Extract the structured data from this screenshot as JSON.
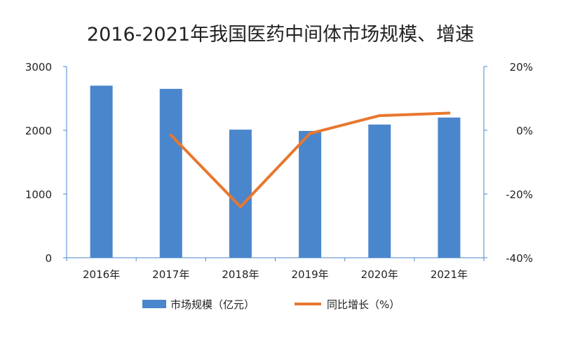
{
  "colors": {
    "bar": "#4a86cc",
    "line": "#e8772e",
    "axis_right": "#4a86cc",
    "axis_left": "#4a86cc",
    "text": "#222222"
  },
  "chart_data": {
    "type": "bar+line",
    "title": "2016-2021年我国医药中间体市场规模、增速",
    "categories": [
      "2016年",
      "2017年",
      "2018年",
      "2019年",
      "2020年",
      "2021年"
    ],
    "series": [
      {
        "name": "市场规模（亿元）",
        "type": "bar",
        "axis": "left",
        "values": [
          2700,
          2650,
          2010,
          1990,
          2090,
          2200
        ]
      },
      {
        "name": "同比增长（%）",
        "type": "line",
        "axis": "right",
        "values": [
          null,
          -1.5,
          -24.0,
          -1.0,
          4.6,
          5.4
        ]
      }
    ],
    "left_axis": {
      "ylim": [
        0,
        3000
      ],
      "ticks": [
        0,
        1000,
        2000,
        3000
      ],
      "tick_labels": [
        "0",
        "1000",
        "2000",
        "3000"
      ]
    },
    "right_axis": {
      "ylim": [
        -40,
        20
      ],
      "ticks": [
        -40,
        -20,
        0,
        20
      ],
      "tick_labels": [
        "-40%",
        "-20%",
        "0%",
        "20%"
      ]
    },
    "legend_position": "bottom"
  }
}
